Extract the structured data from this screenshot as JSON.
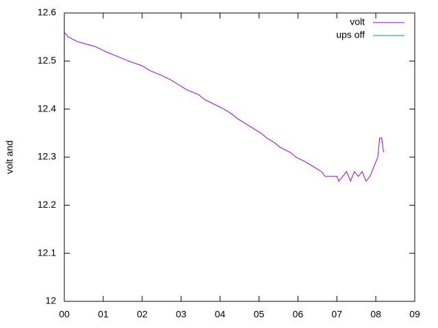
{
  "chart_data": {
    "type": "line",
    "y_label": "volt and",
    "xlim": [
      0,
      9
    ],
    "xticks": [
      {
        "value": 0,
        "label": "00"
      },
      {
        "value": 1,
        "label": "01"
      },
      {
        "value": 2,
        "label": "02"
      },
      {
        "value": 3,
        "label": "03"
      },
      {
        "value": 4,
        "label": "04"
      },
      {
        "value": 5,
        "label": "05"
      },
      {
        "value": 6,
        "label": "06"
      },
      {
        "value": 7,
        "label": "07"
      },
      {
        "value": 8,
        "label": "08"
      },
      {
        "value": 9,
        "label": "09"
      }
    ],
    "ylim": [
      12,
      12.6
    ],
    "yticks": [
      12,
      12.1,
      12.2,
      12.3,
      12.4,
      12.5,
      12.6
    ],
    "legend": "top-right",
    "series": [
      {
        "name": "volt",
        "color": "#9400d3",
        "x": [
          0,
          0.1,
          0.35,
          0.8,
          1.05,
          1.35,
          1.65,
          2.0,
          2.2,
          2.5,
          2.75,
          2.95,
          3.15,
          3.45,
          3.6,
          3.85,
          4.1,
          4.3,
          4.45,
          4.65,
          4.85,
          5.05,
          5.2,
          5.4,
          5.55,
          5.8,
          5.95,
          6.2,
          6.4,
          6.6,
          6.7,
          7.0,
          7.05,
          7.15,
          7.25,
          7.35,
          7.45,
          7.55,
          7.65,
          7.75,
          7.85,
          7.95,
          8.05,
          8.1,
          8.15,
          8.2
        ],
        "values": [
          12.56,
          12.55,
          12.54,
          12.53,
          12.52,
          12.51,
          12.5,
          12.49,
          12.48,
          12.47,
          12.46,
          12.45,
          12.44,
          12.43,
          12.42,
          12.41,
          12.4,
          12.39,
          12.38,
          12.37,
          12.36,
          12.35,
          12.34,
          12.33,
          12.32,
          12.31,
          12.3,
          12.29,
          12.28,
          12.27,
          12.26,
          12.26,
          12.25,
          12.26,
          12.27,
          12.25,
          12.27,
          12.26,
          12.27,
          12.25,
          12.26,
          12.28,
          12.3,
          12.34,
          12.34,
          12.31
        ]
      },
      {
        "name": "ups off",
        "color": "#009e73",
        "x": [],
        "values": []
      }
    ]
  }
}
